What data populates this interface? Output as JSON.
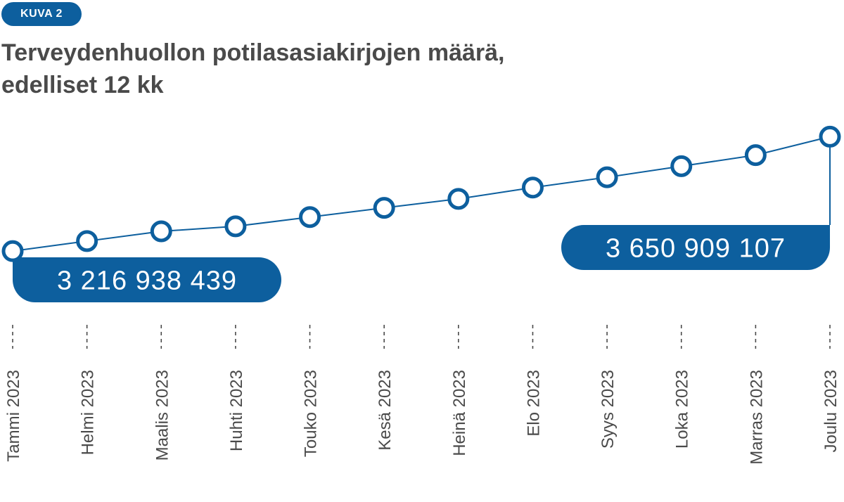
{
  "figure": {
    "badge": "KUVA 2",
    "title_line1": "Terveydenhuollon potilasasiakirjojen määrä,",
    "title_line2": "edelliset 12 kk"
  },
  "colors": {
    "accent": "#0d5f9e",
    "title_text": "#4a4a4a",
    "axis_text": "#4a4a4a",
    "marker_fill": "#ffffff"
  },
  "chart_data": {
    "type": "line",
    "title": "Terveydenhuollon potilasasiakirjojen määrä, edelliset 12 kk",
    "xlabel": "",
    "ylabel": "",
    "grid": false,
    "legend": "none",
    "categories": [
      "Tammi 2023",
      "Helmi 2023",
      "Maalis 2023",
      "Huhti 2023",
      "Touko 2023",
      "Kesä 2023",
      "Heinä 2023",
      "Elo 2023",
      "Syys 2023",
      "Loka 2023",
      "Marras 2023",
      "Joulu 2023"
    ],
    "series": [
      {
        "name": "Potilasasiakirjojen määrä",
        "values": [
          3216938439,
          3255000000,
          3292000000,
          3311000000,
          3346000000,
          3381000000,
          3415000000,
          3458000000,
          3497000000,
          3539000000,
          3581000000,
          3650909107
        ]
      }
    ],
    "ylim": [
      3100000000,
      3700000000
    ],
    "annotations": [
      {
        "index": 0,
        "text": "3 216 938 439",
        "placement": "below-right"
      },
      {
        "index": 11,
        "text": "3 650 909 107",
        "placement": "below-left"
      }
    ]
  }
}
